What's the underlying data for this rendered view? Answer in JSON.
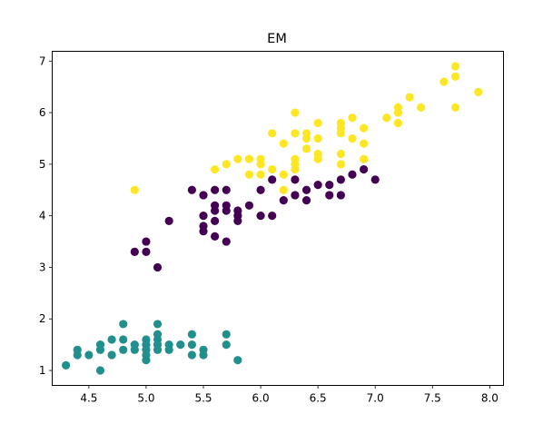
{
  "chart_data": {
    "type": "scatter",
    "title": "EM",
    "xlabel": "",
    "ylabel": "",
    "xlim": [
      4.18,
      8.12
    ],
    "ylim": [
      0.71,
      7.19
    ],
    "xticks": [
      4.5,
      5.0,
      5.5,
      6.0,
      6.5,
      7.0,
      7.5,
      8.0
    ],
    "yticks": [
      1,
      2,
      3,
      4,
      5,
      6,
      7
    ],
    "grid": false,
    "series": [
      {
        "color": "#21908c",
        "points": [
          [
            4.3,
            1.1
          ],
          [
            4.4,
            1.3
          ],
          [
            4.4,
            1.4
          ],
          [
            4.5,
            1.3
          ],
          [
            4.6,
            1.0
          ],
          [
            4.6,
            1.4
          ],
          [
            4.6,
            1.5
          ],
          [
            4.7,
            1.3
          ],
          [
            4.7,
            1.6
          ],
          [
            4.8,
            1.4
          ],
          [
            4.8,
            1.6
          ],
          [
            4.8,
            1.9
          ],
          [
            4.9,
            1.4
          ],
          [
            4.9,
            1.5
          ],
          [
            5.0,
            1.2
          ],
          [
            5.0,
            1.3
          ],
          [
            5.0,
            1.4
          ],
          [
            5.0,
            1.5
          ],
          [
            5.0,
            1.6
          ],
          [
            5.1,
            1.4
          ],
          [
            5.1,
            1.5
          ],
          [
            5.1,
            1.6
          ],
          [
            5.1,
            1.7
          ],
          [
            5.1,
            1.9
          ],
          [
            5.2,
            1.4
          ],
          [
            5.2,
            1.5
          ],
          [
            5.3,
            1.5
          ],
          [
            5.4,
            1.3
          ],
          [
            5.4,
            1.5
          ],
          [
            5.4,
            1.7
          ],
          [
            5.5,
            1.3
          ],
          [
            5.5,
            1.4
          ],
          [
            5.7,
            1.5
          ],
          [
            5.7,
            1.7
          ],
          [
            5.8,
            1.2
          ]
        ]
      },
      {
        "color": "#440154",
        "points": [
          [
            4.9,
            3.3
          ],
          [
            5.0,
            3.3
          ],
          [
            5.0,
            3.5
          ],
          [
            5.1,
            3.0
          ],
          [
            5.2,
            3.9
          ],
          [
            5.4,
            4.5
          ],
          [
            5.5,
            3.7
          ],
          [
            5.5,
            3.8
          ],
          [
            5.5,
            4.0
          ],
          [
            5.5,
            4.4
          ],
          [
            5.6,
            3.6
          ],
          [
            5.6,
            3.9
          ],
          [
            5.6,
            4.1
          ],
          [
            5.6,
            4.2
          ],
          [
            5.6,
            4.5
          ],
          [
            5.7,
            3.5
          ],
          [
            5.7,
            4.1
          ],
          [
            5.7,
            4.2
          ],
          [
            5.7,
            4.5
          ],
          [
            5.8,
            3.9
          ],
          [
            5.8,
            4.0
          ],
          [
            5.8,
            4.1
          ],
          [
            5.9,
            4.2
          ],
          [
            6.0,
            4.0
          ],
          [
            6.0,
            4.5
          ],
          [
            6.1,
            4.0
          ],
          [
            6.1,
            4.7
          ],
          [
            6.2,
            4.3
          ],
          [
            6.3,
            4.4
          ],
          [
            6.3,
            4.7
          ],
          [
            6.4,
            4.3
          ],
          [
            6.4,
            4.5
          ],
          [
            6.5,
            4.6
          ],
          [
            6.6,
            4.4
          ],
          [
            6.6,
            4.6
          ],
          [
            6.7,
            4.4
          ],
          [
            6.7,
            4.7
          ],
          [
            6.8,
            4.8
          ],
          [
            6.9,
            4.9
          ],
          [
            7.0,
            4.7
          ]
        ]
      },
      {
        "color": "#fde725",
        "points": [
          [
            4.9,
            4.5
          ],
          [
            5.6,
            4.9
          ],
          [
            5.7,
            5.0
          ],
          [
            5.8,
            5.1
          ],
          [
            5.9,
            4.8
          ],
          [
            5.9,
            5.1
          ],
          [
            6.0,
            4.8
          ],
          [
            6.0,
            5.0
          ],
          [
            6.0,
            5.1
          ],
          [
            6.1,
            4.9
          ],
          [
            6.1,
            5.6
          ],
          [
            6.2,
            4.5
          ],
          [
            6.2,
            4.8
          ],
          [
            6.2,
            5.4
          ],
          [
            6.3,
            4.9
          ],
          [
            6.3,
            5.0
          ],
          [
            6.3,
            5.1
          ],
          [
            6.3,
            5.6
          ],
          [
            6.3,
            6.0
          ],
          [
            6.4,
            5.3
          ],
          [
            6.4,
            5.5
          ],
          [
            6.4,
            5.6
          ],
          [
            6.5,
            5.1
          ],
          [
            6.5,
            5.2
          ],
          [
            6.5,
            5.5
          ],
          [
            6.5,
            5.8
          ],
          [
            6.7,
            5.0
          ],
          [
            6.7,
            5.2
          ],
          [
            6.7,
            5.6
          ],
          [
            6.7,
            5.7
          ],
          [
            6.7,
            5.8
          ],
          [
            6.8,
            5.5
          ],
          [
            6.8,
            5.9
          ],
          [
            6.9,
            5.1
          ],
          [
            6.9,
            5.4
          ],
          [
            6.9,
            5.7
          ],
          [
            7.1,
            5.9
          ],
          [
            7.2,
            5.8
          ],
          [
            7.2,
            6.0
          ],
          [
            7.2,
            6.1
          ],
          [
            7.3,
            6.3
          ],
          [
            7.4,
            6.1
          ],
          [
            7.6,
            6.6
          ],
          [
            7.7,
            6.1
          ],
          [
            7.7,
            6.7
          ],
          [
            7.7,
            6.9
          ],
          [
            7.9,
            6.4
          ]
        ]
      }
    ]
  }
}
